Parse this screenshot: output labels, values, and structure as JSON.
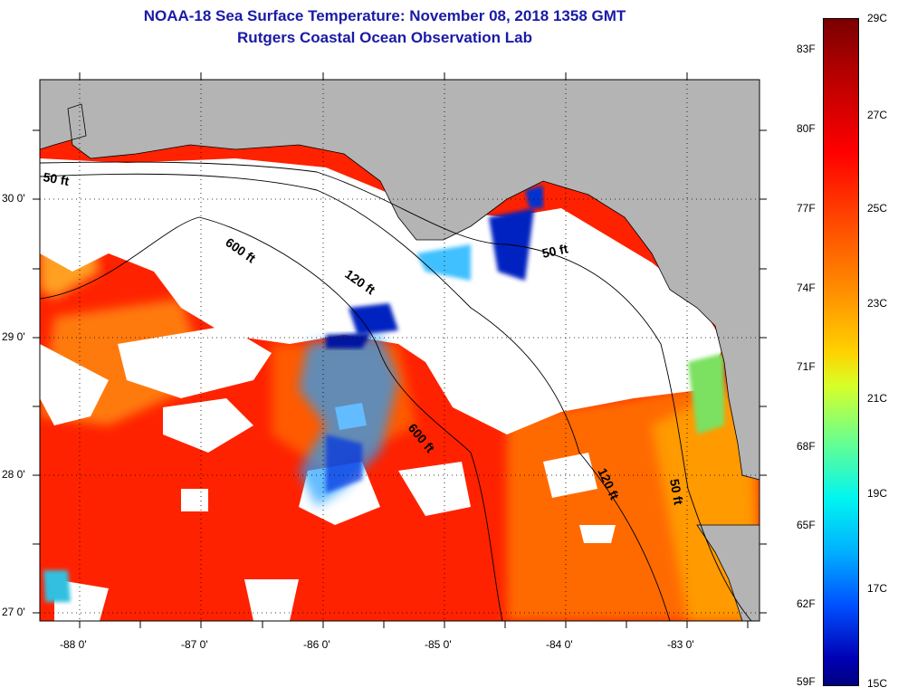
{
  "title": {
    "line1": "NOAA-18 Sea Surface Temperature:  November 08, 2018 1358 GMT",
    "line2": "Rutgers Coastal Ocean Observation Lab"
  },
  "axes": {
    "lat_labels": [
      "30 0'",
      "29 0'",
      "28 0'",
      "27 0'"
    ],
    "lon_labels": [
      "-88 0'",
      "-87 0'",
      "-86 0'",
      "-85 0'",
      "-84 0'",
      "-83 0'"
    ]
  },
  "contours": [
    {
      "label": "50 ft",
      "depth_ft": 50
    },
    {
      "label": "600 ft",
      "depth_ft": 600
    },
    {
      "label": "120 ft",
      "depth_ft": 120
    },
    {
      "label": "50 ft",
      "depth_ft": 50
    },
    {
      "label": "600 ft",
      "depth_ft": 600
    },
    {
      "label": "120 ft",
      "depth_ft": 120
    },
    {
      "label": "50 ft",
      "depth_ft": 50
    }
  ],
  "colorbar": {
    "fahrenheit": [
      "83F",
      "80F",
      "77F",
      "74F",
      "71F",
      "68F",
      "65F",
      "62F",
      "59F"
    ],
    "celsius": [
      "29C",
      "27C",
      "25C",
      "23C",
      "21C",
      "19C",
      "17C",
      "15C"
    ]
  },
  "colors": {
    "land": "#b4b4b4",
    "cloud": "#ffffff",
    "warm_water": "#ff2a00",
    "title": "#1a1aa6"
  }
}
